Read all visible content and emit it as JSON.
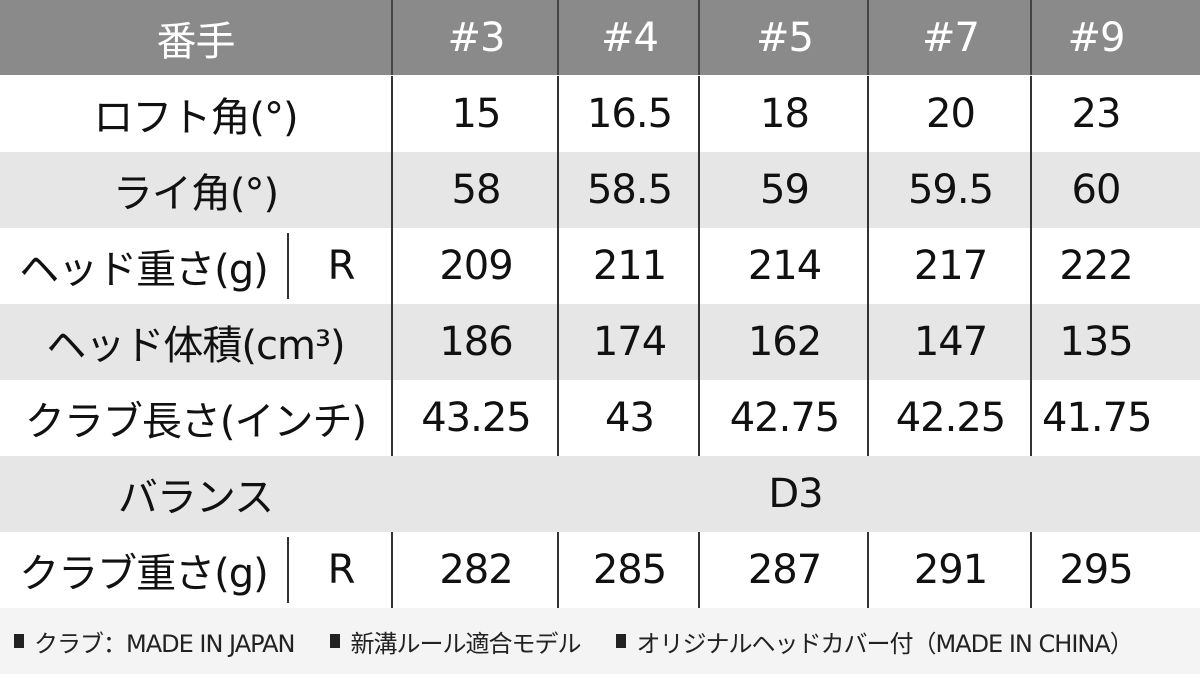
{
  "header": {
    "label": "番手",
    "clubs": [
      "#3",
      "#4",
      "#5",
      "#7",
      "#9"
    ]
  },
  "rows": [
    {
      "label": "ロフト角(°)",
      "sub": "",
      "values": [
        "15",
        "16.5",
        "18",
        "20",
        "23"
      ]
    },
    {
      "label": "ライ角(°)",
      "sub": "",
      "values": [
        "58",
        "58.5",
        "59",
        "59.5",
        "60"
      ]
    },
    {
      "label": "ヘッド重さ(g)",
      "sub": "R",
      "values": [
        "209",
        "211",
        "214",
        "217",
        "222"
      ]
    },
    {
      "label": "ヘッド体積(cm³)",
      "sub": "",
      "values": [
        "186",
        "174",
        "162",
        "147",
        "135"
      ]
    },
    {
      "label": "クラブ長さ(インチ)",
      "sub": "",
      "values": [
        "43.25",
        "43",
        "42.75",
        "42.25",
        "41.75"
      ]
    },
    {
      "label": "バランス",
      "sub": "",
      "span_value": "D3"
    },
    {
      "label": "クラブ重さ(g)",
      "sub": "R",
      "values": [
        "282",
        "285",
        "287",
        "291",
        "295"
      ]
    }
  ],
  "footer": {
    "notes": [
      "クラブ：MADE IN JAPAN",
      "新溝ルール適合モデル",
      "オリジナルヘッドカバー付（MADE IN CHINA）"
    ]
  },
  "colors": {
    "header_bg": "#8a8a8a",
    "alt_row_bg": "#e6e6e6"
  }
}
